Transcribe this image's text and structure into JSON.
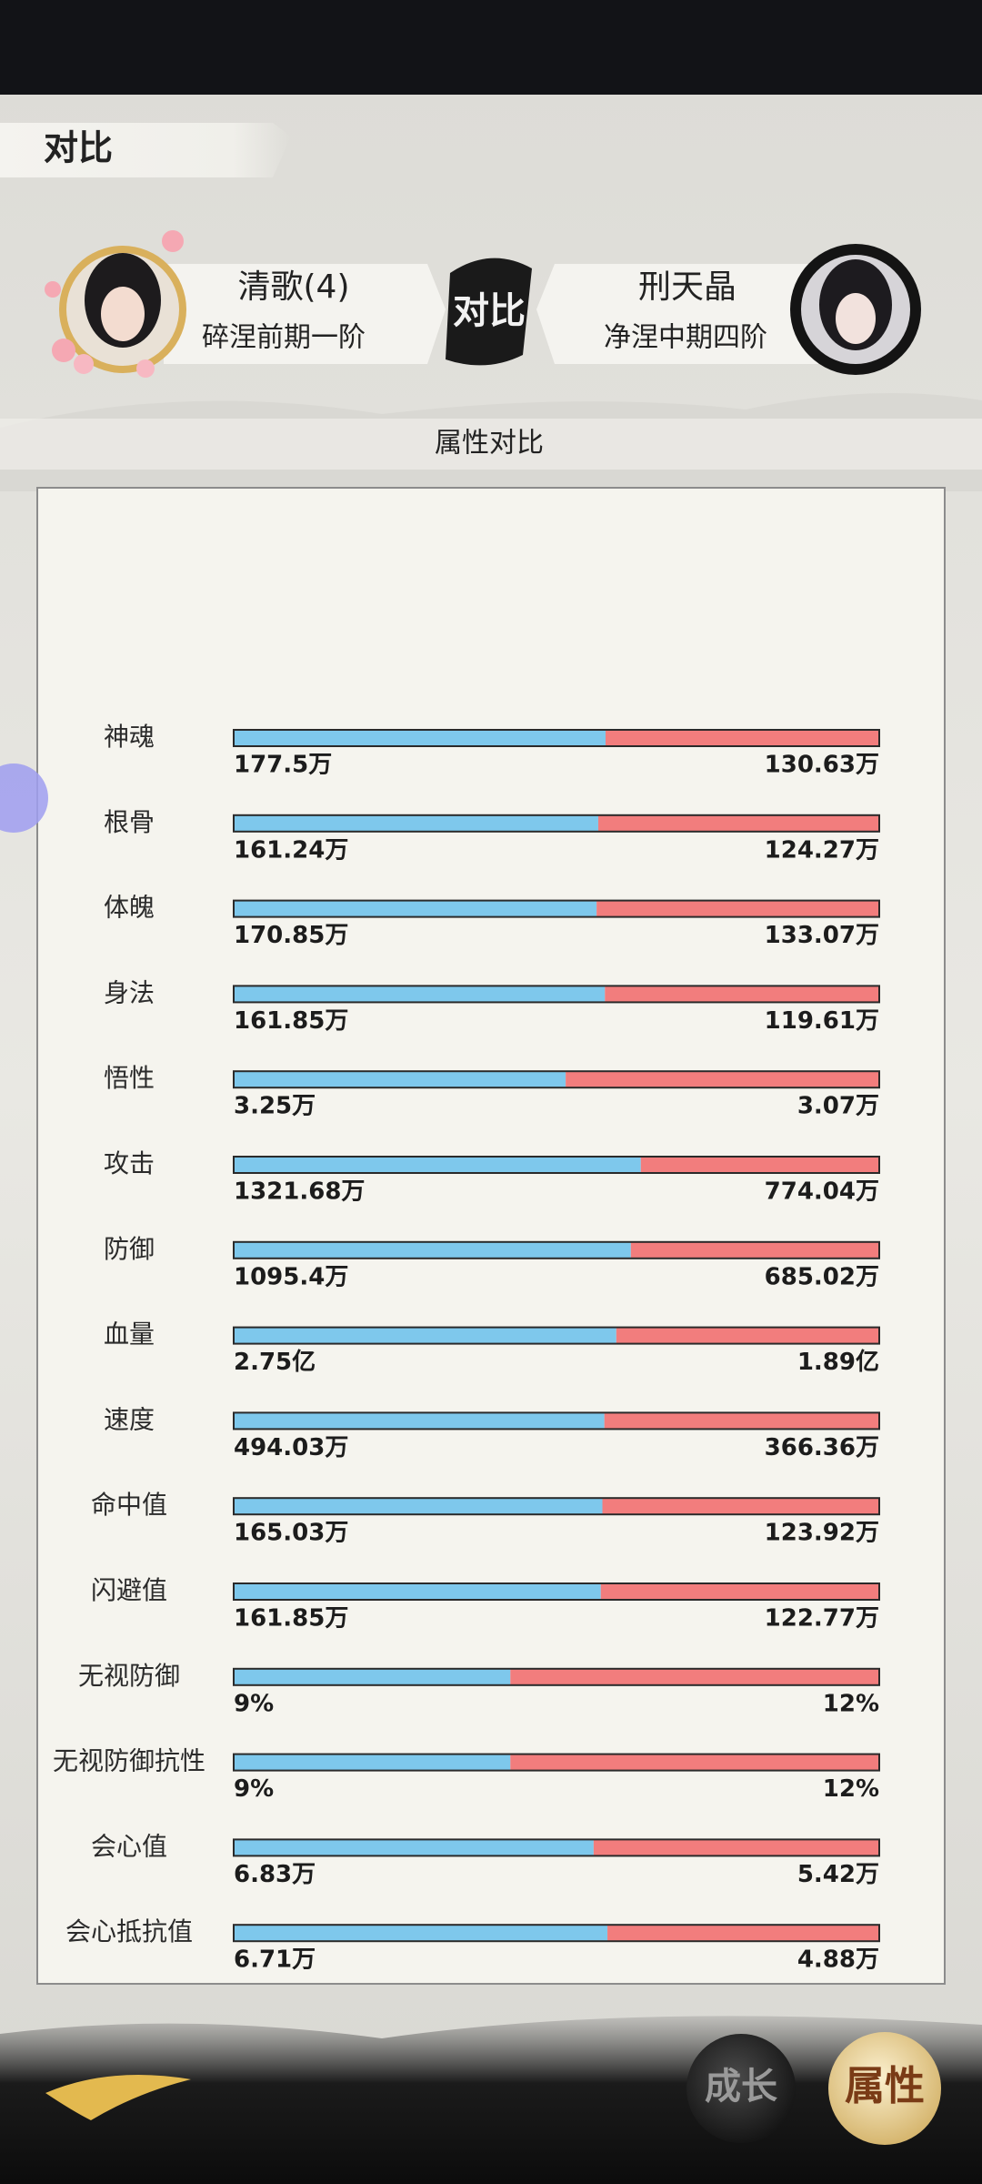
{
  "header": {
    "title": "对比"
  },
  "players": [
    {
      "name": "清歌(4)",
      "realm": "碎涅前期一阶"
    },
    {
      "name": "刑天晶",
      "realm": "净涅中期四阶"
    }
  ],
  "emblem": "对比",
  "section_title": "属性对比",
  "stats": [
    {
      "name": "神魂",
      "left": 177.5,
      "right": 130.63,
      "left_label": "177.5万",
      "right_label": "130.63万"
    },
    {
      "name": "根骨",
      "left": 161.24,
      "right": 124.27,
      "left_label": "161.24万",
      "right_label": "124.27万"
    },
    {
      "name": "体魄",
      "left": 170.85,
      "right": 133.07,
      "left_label": "170.85万",
      "right_label": "133.07万"
    },
    {
      "name": "身法",
      "left": 161.85,
      "right": 119.61,
      "left_label": "161.85万",
      "right_label": "119.61万"
    },
    {
      "name": "悟性",
      "left": 3.25,
      "right": 3.07,
      "left_label": "3.25万",
      "right_label": "3.07万"
    },
    {
      "name": "攻击",
      "left": 1321.68,
      "right": 774.04,
      "left_label": "1321.68万",
      "right_label": "774.04万"
    },
    {
      "name": "防御",
      "left": 1095.4,
      "right": 685.02,
      "left_label": "1095.4万",
      "right_label": "685.02万"
    },
    {
      "name": "血量",
      "left": 27500,
      "right": 18900,
      "left_label": "2.75亿",
      "right_label": "1.89亿"
    },
    {
      "name": "速度",
      "left": 494.03,
      "right": 366.36,
      "left_label": "494.03万",
      "right_label": "366.36万"
    },
    {
      "name": "命中值",
      "left": 165.03,
      "right": 123.92,
      "left_label": "165.03万",
      "right_label": "123.92万"
    },
    {
      "name": "闪避值",
      "left": 161.85,
      "right": 122.77,
      "left_label": "161.85万",
      "right_label": "122.77万"
    },
    {
      "name": "无视防御",
      "left": 9,
      "right": 12,
      "left_label": "9%",
      "right_label": "12%"
    },
    {
      "name": "无视防御抗性",
      "left": 9,
      "right": 12,
      "left_label": "9%",
      "right_label": "12%"
    },
    {
      "name": "会心值",
      "left": 6.83,
      "right": 5.42,
      "left_label": "6.83万",
      "right_label": "5.42万"
    },
    {
      "name": "会心抵抗值",
      "left": 6.71,
      "right": 4.88,
      "left_label": "6.71万",
      "right_label": "4.88万"
    }
  ],
  "nav": [
    "成长",
    "属性"
  ]
}
